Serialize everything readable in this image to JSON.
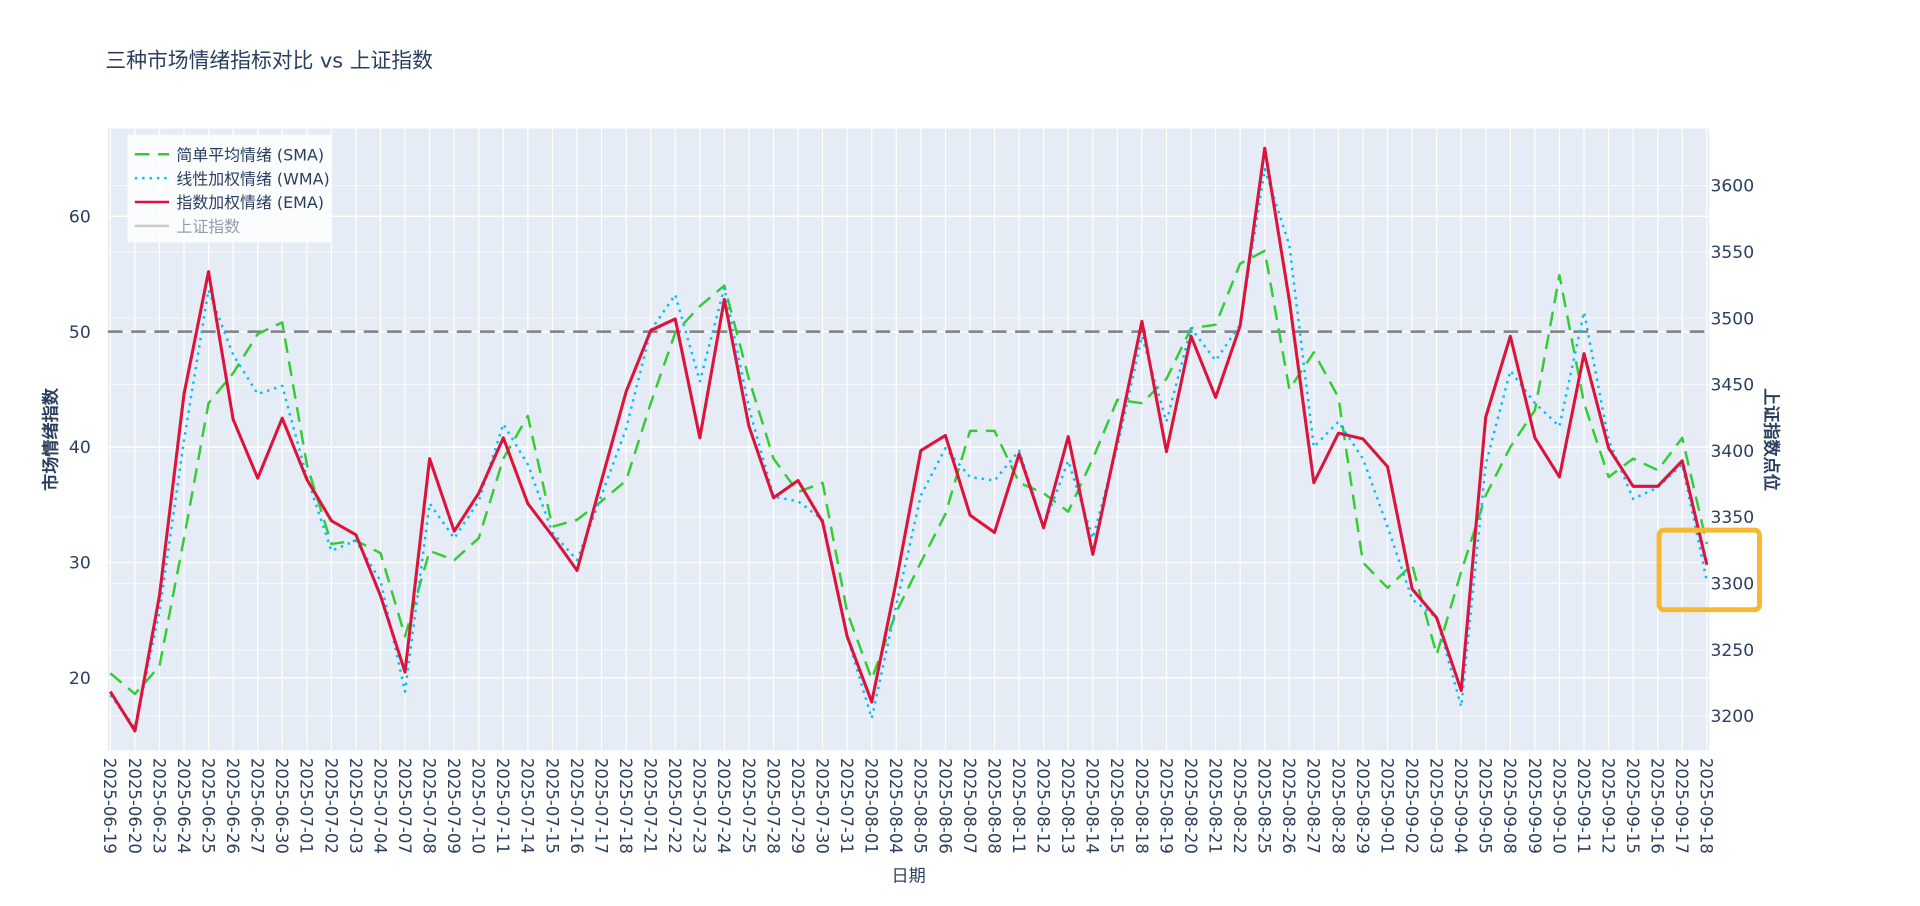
{
  "chart_data": {
    "type": "line",
    "title": "三种市场情绪指标对比 vs 上证指数",
    "xlabel": "日期",
    "ylabel": "市场情绪指数",
    "y2label": "上证指数点位",
    "categories": [
      "2025-06-19",
      "2025-06-20",
      "2025-06-23",
      "2025-06-24",
      "2025-06-25",
      "2025-06-26",
      "2025-06-27",
      "2025-06-30",
      "2025-07-01",
      "2025-07-02",
      "2025-07-03",
      "2025-07-04",
      "2025-07-07",
      "2025-07-08",
      "2025-07-09",
      "2025-07-10",
      "2025-07-11",
      "2025-07-14",
      "2025-07-15",
      "2025-07-16",
      "2025-07-17",
      "2025-07-18",
      "2025-07-21",
      "2025-07-22",
      "2025-07-23",
      "2025-07-24",
      "2025-07-25",
      "2025-07-28",
      "2025-07-29",
      "2025-07-30",
      "2025-07-31",
      "2025-08-01",
      "2025-08-04",
      "2025-08-05",
      "2025-08-06",
      "2025-08-07",
      "2025-08-08",
      "2025-08-11",
      "2025-08-12",
      "2025-08-13",
      "2025-08-14",
      "2025-08-15",
      "2025-08-18",
      "2025-08-19",
      "2025-08-20",
      "2025-08-21",
      "2025-08-22",
      "2025-08-25",
      "2025-08-26",
      "2025-08-27",
      "2025-08-28",
      "2025-08-29",
      "2025-09-01",
      "2025-09-02",
      "2025-09-03",
      "2025-09-04",
      "2025-09-05",
      "2025-09-08",
      "2025-09-09",
      "2025-09-10",
      "2025-09-11",
      "2025-09-12",
      "2025-09-15",
      "2025-09-16",
      "2025-09-17",
      "2025-09-18"
    ],
    "series": [
      {
        "name": "简单平均情绪 (SMA)",
        "color": "#32cd32",
        "line_style": "dash",
        "values": [
          20.4,
          18.6,
          21.0,
          32.1,
          43.8,
          46.4,
          49.8,
          50.8,
          38.5,
          31.6,
          31.9,
          30.8,
          23.6,
          31.0,
          30.2,
          32.1,
          39.0,
          42.7,
          33.1,
          33.7,
          35.3,
          37.1,
          43.8,
          49.9,
          52.2,
          54.0,
          45.9,
          39.0,
          36.1,
          36.9,
          25.7,
          19.9,
          25.7,
          30.0,
          34.2,
          41.4,
          41.4,
          36.9,
          36.0,
          34.4,
          39.0,
          44.1,
          43.8,
          45.9,
          50.3,
          50.6,
          55.9,
          57.0,
          45.0,
          48.2,
          44.3,
          30.0,
          27.8,
          29.8,
          22.0,
          29.2,
          35.8,
          40.0,
          43.2,
          54.9,
          43.8,
          37.4,
          39.0,
          38.0,
          40.8,
          31.6
        ]
      },
      {
        "name": "线性加权情绪 (WMA)",
        "color": "#00bfff",
        "line_style": "dot",
        "values": [
          18.5,
          15.7,
          25.7,
          40.6,
          53.6,
          48.0,
          44.6,
          45.3,
          37.4,
          31.0,
          31.9,
          28.4,
          18.8,
          35.1,
          32.1,
          35.3,
          42.0,
          38.5,
          32.6,
          30.2,
          35.8,
          41.6,
          50.1,
          53.2,
          45.7,
          53.8,
          43.4,
          35.7,
          35.3,
          33.7,
          23.6,
          16.5,
          26.3,
          35.8,
          39.9,
          37.4,
          37.1,
          39.7,
          33.1,
          38.8,
          32.1,
          40.0,
          49.6,
          42.2,
          50.3,
          47.5,
          50.6,
          64.1,
          57.5,
          40.0,
          42.2,
          39.0,
          33.1,
          26.8,
          25.2,
          17.5,
          38.5,
          46.6,
          43.8,
          41.8,
          51.7,
          40.6,
          35.5,
          36.5,
          38.5,
          28.4
        ]
      },
      {
        "name": "指数加权情绪 (EMA)",
        "color": "#dc143c",
        "line_style": "solid",
        "values": [
          18.8,
          15.4,
          27.1,
          44.6,
          55.2,
          42.4,
          37.3,
          42.5,
          37.2,
          33.6,
          32.4,
          27.1,
          20.5,
          39.0,
          32.7,
          36.0,
          40.8,
          35.1,
          32.3,
          29.3,
          37.1,
          44.8,
          50.1,
          51.1,
          40.8,
          52.8,
          41.8,
          35.6,
          37.1,
          33.5,
          23.6,
          17.9,
          28.4,
          39.7,
          41.0,
          34.1,
          32.6,
          39.4,
          33.0,
          40.9,
          30.7,
          40.6,
          50.9,
          39.6,
          49.6,
          44.3,
          50.5,
          65.9,
          52.7,
          36.9,
          41.2,
          40.7,
          38.3,
          27.7,
          25.2,
          18.9,
          42.6,
          49.6,
          40.8,
          37.4,
          48.1,
          39.9,
          36.6,
          36.6,
          38.8,
          29.8
        ]
      },
      {
        "name": "上证指数",
        "color": "#999999",
        "line_style": "solid",
        "axis": "y2",
        "visible": "legendonly"
      }
    ],
    "ylim": [
      13.7,
      67.6
    ],
    "yticks": [
      20,
      30,
      40,
      50,
      60
    ],
    "y2lim": [
      3174,
      3643
    ],
    "y2ticks": [
      3200,
      3250,
      3300,
      3350,
      3400,
      3450,
      3500,
      3550,
      3600
    ],
    "hline": {
      "y": 50,
      "color": "#808080",
      "dash": "dash"
    },
    "grid": true,
    "legend": "top-left"
  }
}
